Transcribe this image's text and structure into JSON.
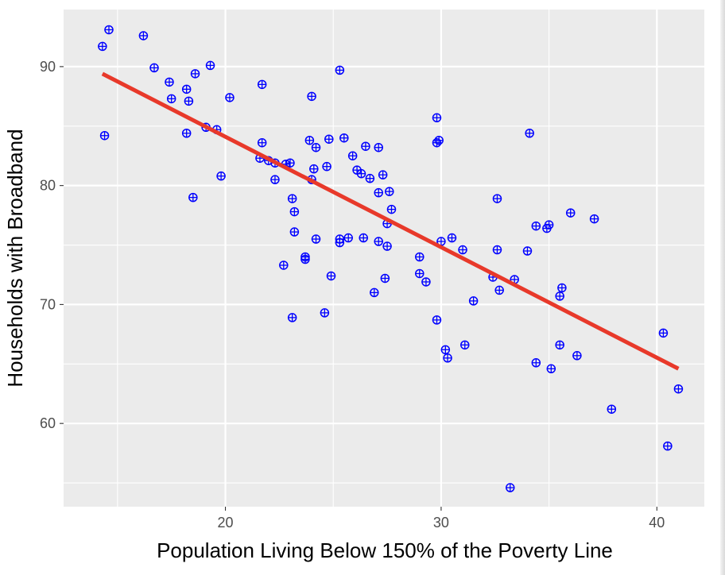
{
  "chart_data": {
    "type": "scatter",
    "xlabel": "Population Living Below 150% of the Poverty Line",
    "ylabel": "Households with Broadband",
    "xlim": [
      12.5,
      42.2
    ],
    "ylim": [
      53.0,
      94.8
    ],
    "x_ticks": [
      20,
      30,
      40
    ],
    "y_ticks": [
      60,
      70,
      80,
      90
    ],
    "x_tick_labels": [
      "20",
      "30",
      "40"
    ],
    "y_tick_labels": [
      "60",
      "70",
      "80",
      "90"
    ],
    "grid": true,
    "legend": "none",
    "point_color": "#0000ff",
    "line_color": "#e8392a",
    "panel_color": "#ebebeb",
    "trend_line": {
      "x": [
        14.3,
        41.0
      ],
      "y": [
        89.4,
        64.6
      ]
    },
    "points": [
      {
        "x": 14.3,
        "y": 91.7
      },
      {
        "x": 14.6,
        "y": 93.1
      },
      {
        "x": 14.4,
        "y": 84.2
      },
      {
        "x": 16.2,
        "y": 92.6
      },
      {
        "x": 16.7,
        "y": 89.9
      },
      {
        "x": 17.4,
        "y": 88.7
      },
      {
        "x": 17.5,
        "y": 87.3
      },
      {
        "x": 18.2,
        "y": 88.1
      },
      {
        "x": 18.3,
        "y": 87.1
      },
      {
        "x": 18.6,
        "y": 89.4
      },
      {
        "x": 19.3,
        "y": 90.1
      },
      {
        "x": 18.2,
        "y": 84.4
      },
      {
        "x": 19.1,
        "y": 84.9
      },
      {
        "x": 19.6,
        "y": 84.7
      },
      {
        "x": 18.5,
        "y": 79.0
      },
      {
        "x": 19.8,
        "y": 80.8
      },
      {
        "x": 20.2,
        "y": 87.4
      },
      {
        "x": 21.7,
        "y": 88.5
      },
      {
        "x": 21.7,
        "y": 83.6
      },
      {
        "x": 21.6,
        "y": 82.3
      },
      {
        "x": 22.0,
        "y": 82.1
      },
      {
        "x": 22.3,
        "y": 81.9
      },
      {
        "x": 22.8,
        "y": 81.8
      },
      {
        "x": 23.0,
        "y": 81.9
      },
      {
        "x": 22.3,
        "y": 80.5
      },
      {
        "x": 22.7,
        "y": 73.3
      },
      {
        "x": 23.1,
        "y": 78.9
      },
      {
        "x": 23.2,
        "y": 77.8
      },
      {
        "x": 23.2,
        "y": 76.1
      },
      {
        "x": 23.1,
        "y": 68.9
      },
      {
        "x": 23.7,
        "y": 74.0
      },
      {
        "x": 23.7,
        "y": 73.8
      },
      {
        "x": 23.9,
        "y": 83.8
      },
      {
        "x": 24.0,
        "y": 87.5
      },
      {
        "x": 24.2,
        "y": 83.2
      },
      {
        "x": 24.1,
        "y": 81.4
      },
      {
        "x": 24.0,
        "y": 80.5
      },
      {
        "x": 24.2,
        "y": 75.5
      },
      {
        "x": 24.6,
        "y": 69.3
      },
      {
        "x": 24.7,
        "y": 81.6
      },
      {
        "x": 24.8,
        "y": 83.9
      },
      {
        "x": 24.9,
        "y": 72.4
      },
      {
        "x": 25.3,
        "y": 89.7
      },
      {
        "x": 25.3,
        "y": 75.2
      },
      {
        "x": 25.3,
        "y": 75.5
      },
      {
        "x": 25.5,
        "y": 84.0
      },
      {
        "x": 25.7,
        "y": 75.6
      },
      {
        "x": 25.9,
        "y": 82.5
      },
      {
        "x": 26.1,
        "y": 81.3
      },
      {
        "x": 26.3,
        "y": 81.0
      },
      {
        "x": 26.4,
        "y": 75.6
      },
      {
        "x": 26.5,
        "y": 83.3
      },
      {
        "x": 26.7,
        "y": 80.6
      },
      {
        "x": 26.9,
        "y": 71.0
      },
      {
        "x": 27.1,
        "y": 83.2
      },
      {
        "x": 27.1,
        "y": 75.3
      },
      {
        "x": 27.1,
        "y": 79.4
      },
      {
        "x": 27.3,
        "y": 80.9
      },
      {
        "x": 27.4,
        "y": 72.2
      },
      {
        "x": 27.5,
        "y": 76.8
      },
      {
        "x": 27.5,
        "y": 74.9
      },
      {
        "x": 27.6,
        "y": 79.5
      },
      {
        "x": 27.7,
        "y": 78.0
      },
      {
        "x": 29.0,
        "y": 74.0
      },
      {
        "x": 29.0,
        "y": 72.6
      },
      {
        "x": 29.3,
        "y": 71.9
      },
      {
        "x": 29.8,
        "y": 85.7
      },
      {
        "x": 29.8,
        "y": 83.6
      },
      {
        "x": 29.9,
        "y": 83.8
      },
      {
        "x": 29.8,
        "y": 68.7
      },
      {
        "x": 30.0,
        "y": 75.3
      },
      {
        "x": 30.2,
        "y": 66.2
      },
      {
        "x": 30.3,
        "y": 65.5
      },
      {
        "x": 30.5,
        "y": 75.6
      },
      {
        "x": 31.0,
        "y": 74.6
      },
      {
        "x": 31.1,
        "y": 66.6
      },
      {
        "x": 31.5,
        "y": 70.3
      },
      {
        "x": 32.4,
        "y": 72.3
      },
      {
        "x": 32.6,
        "y": 78.9
      },
      {
        "x": 32.6,
        "y": 74.6
      },
      {
        "x": 32.7,
        "y": 71.2
      },
      {
        "x": 33.2,
        "y": 54.6
      },
      {
        "x": 33.4,
        "y": 72.1
      },
      {
        "x": 34.0,
        "y": 74.5
      },
      {
        "x": 34.1,
        "y": 84.4
      },
      {
        "x": 34.4,
        "y": 76.6
      },
      {
        "x": 34.4,
        "y": 65.1
      },
      {
        "x": 34.9,
        "y": 76.4
      },
      {
        "x": 35.0,
        "y": 76.7
      },
      {
        "x": 35.1,
        "y": 64.6
      },
      {
        "x": 35.5,
        "y": 70.7
      },
      {
        "x": 35.5,
        "y": 66.6
      },
      {
        "x": 35.6,
        "y": 71.4
      },
      {
        "x": 36.0,
        "y": 77.7
      },
      {
        "x": 36.3,
        "y": 65.7
      },
      {
        "x": 37.1,
        "y": 77.2
      },
      {
        "x": 37.9,
        "y": 61.2
      },
      {
        "x": 40.3,
        "y": 67.6
      },
      {
        "x": 40.5,
        "y": 58.1
      },
      {
        "x": 41.0,
        "y": 62.9
      }
    ]
  }
}
